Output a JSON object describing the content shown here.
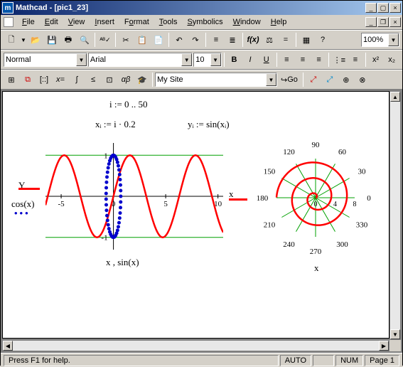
{
  "window": {
    "title": "Mathcad - [pic1_23]",
    "app_icon_letter": "m"
  },
  "menus": [
    {
      "u": "F",
      "rest": "ile"
    },
    {
      "u": "E",
      "rest": "dit"
    },
    {
      "u": "V",
      "rest": "iew"
    },
    {
      "u": "I",
      "rest": "nsert"
    },
    {
      "u": "F",
      "rest": "ormat",
      "pre": "F",
      "label": "Format",
      "uIdx": 1
    },
    {
      "u": "T",
      "rest": "ools"
    },
    {
      "u": "S",
      "rest": "ymbolics"
    },
    {
      "u": "W",
      "rest": "indow"
    },
    {
      "u": "H",
      "rest": "elp"
    }
  ],
  "formatbar": {
    "style": "Normal",
    "font": "Arial",
    "size": "10"
  },
  "resourcebar": {
    "site": "My Site",
    "go_label": "Go"
  },
  "zoom": "100%",
  "equations": {
    "range_def": "i := 0 .. 50",
    "x_def": "xᵢ := i · 0.2",
    "y_def": "yᵢ := sin(xᵢ)"
  },
  "xy_plot": {
    "y_legend1": "Y",
    "y_legend2": "cos(x)",
    "x_label": "x , sin(x)",
    "x_ticks": [
      -5,
      0,
      5,
      10
    ],
    "y_ticks": [
      -1,
      1
    ],
    "xlim": [
      -6.5,
      10.5
    ],
    "ylim": [
      -1.3,
      1.3
    ],
    "sine_color": "#ff0000",
    "cos_color": "#0000cc",
    "grid_color": "#00a000",
    "axis_color": "#000000"
  },
  "polar_plot": {
    "label": "x",
    "x_axis": "x",
    "angles": [
      0,
      30,
      60,
      90,
      120,
      150,
      180,
      210,
      240,
      270,
      300,
      330
    ],
    "rticks": [
      0,
      4,
      8
    ],
    "spiral_color": "#ff0000",
    "grid_color": "#00a000"
  },
  "status": {
    "help": "Press F1 for help.",
    "auto": "AUTO",
    "num": "NUM",
    "page": "Page 1"
  }
}
